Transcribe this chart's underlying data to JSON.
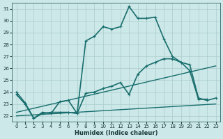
{
  "title": "",
  "xlabel": "Humidex (Indice chaleur)",
  "background_color": "#cce8e8",
  "grid_color": "#aacccc",
  "line_color": "#1a6e6e",
  "xlim": [
    -0.5,
    23.5
  ],
  "ylim": [
    21.5,
    31.5
  ],
  "yticks": [
    22,
    23,
    24,
    25,
    26,
    27,
    28,
    29,
    30,
    31
  ],
  "xticks": [
    0,
    1,
    2,
    3,
    4,
    5,
    6,
    7,
    8,
    9,
    10,
    11,
    12,
    13,
    14,
    15,
    16,
    17,
    18,
    19,
    20,
    21,
    22,
    23
  ],
  "lines": [
    {
      "x": [
        0,
        1,
        2,
        3,
        4,
        5,
        6,
        7,
        8,
        9,
        10,
        11,
        12,
        13,
        14,
        15,
        16,
        17,
        18,
        19,
        20,
        21,
        22
      ],
      "y": [
        24,
        23.1,
        21.8,
        22.2,
        22.3,
        22.3,
        22.3,
        22.2,
        28.3,
        28.7,
        29.5,
        29.3,
        29.5,
        31.2,
        30.2,
        30.2,
        30.3,
        28.5,
        27.0,
        26.5,
        25.8,
        23.4,
        23.4
      ],
      "marker": "P",
      "markersize": 2.5,
      "linewidth": 1.2
    },
    {
      "x": [
        0,
        1,
        2,
        3,
        4,
        5,
        6,
        7,
        8,
        9,
        10,
        11,
        12,
        13,
        14,
        15,
        16,
        17,
        18,
        19,
        20,
        21,
        22,
        23
      ],
      "y": [
        23.8,
        23.0,
        21.8,
        22.3,
        22.2,
        23.2,
        23.3,
        22.2,
        23.9,
        24.0,
        24.3,
        24.5,
        24.8,
        23.8,
        25.5,
        26.2,
        26.5,
        26.8,
        26.8,
        26.5,
        26.3,
        23.5,
        23.3,
        23.5
      ],
      "marker": "P",
      "markersize": 2.5,
      "linewidth": 1.2
    },
    {
      "x": [
        0,
        23
      ],
      "y": [
        22.0,
        23.0
      ],
      "marker": null,
      "markersize": 0,
      "linewidth": 1.0
    },
    {
      "x": [
        0,
        23
      ],
      "y": [
        22.3,
        26.2
      ],
      "marker": null,
      "markersize": 0,
      "linewidth": 1.0
    }
  ]
}
